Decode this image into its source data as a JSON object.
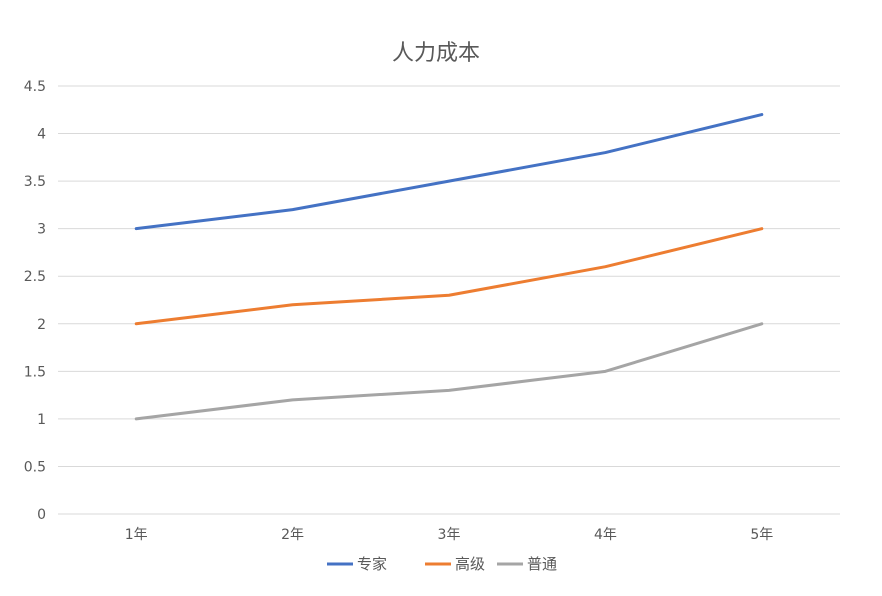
{
  "chart_data": {
    "type": "line",
    "title": "人力成本",
    "categories": [
      "1年",
      "2年",
      "3年",
      "4年",
      "5年"
    ],
    "series": [
      {
        "name": "专家",
        "color": "#4472C4",
        "values": [
          3.0,
          3.2,
          3.5,
          3.8,
          4.2
        ]
      },
      {
        "name": "高级",
        "color": "#ED7D31",
        "values": [
          2.0,
          2.2,
          2.3,
          2.6,
          3.0
        ]
      },
      {
        "name": "普通",
        "color": "#A5A5A5",
        "values": [
          1.0,
          1.2,
          1.3,
          1.5,
          2.0
        ]
      }
    ],
    "ylim": [
      0,
      4.5
    ],
    "yticks": [
      "0",
      "0.5",
      "1",
      "1.5",
      "2",
      "2.5",
      "3",
      "3.5",
      "4",
      "4.5"
    ],
    "grid": true,
    "legend_position": "bottom"
  }
}
